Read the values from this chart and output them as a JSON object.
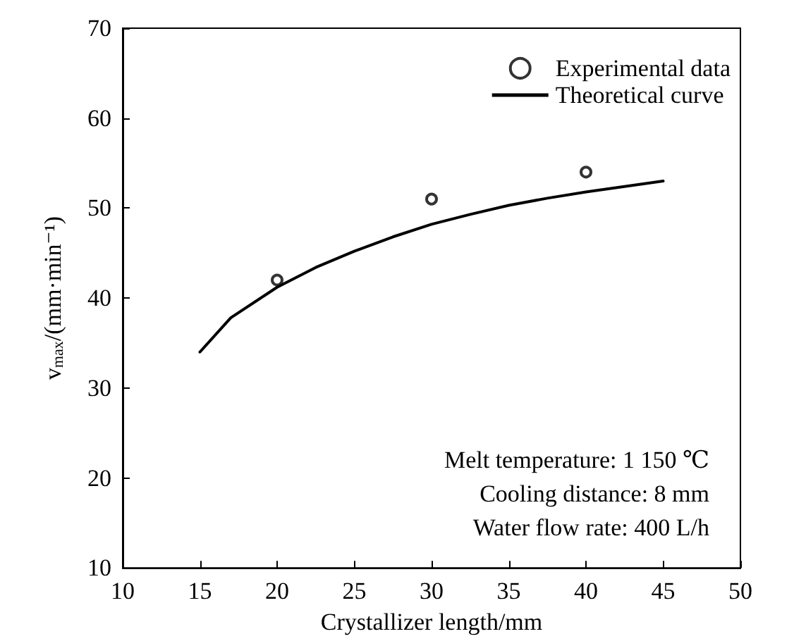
{
  "chart_data": {
    "type": "scatter",
    "xlabel": "Crystallizer length/mm",
    "ylabel": "v$_{max}$/(mm·min⁻¹)",
    "xlim": [
      10,
      50
    ],
    "xticks": [
      10,
      15,
      20,
      25,
      30,
      35,
      40,
      45,
      50
    ],
    "ylim": [
      10,
      70
    ],
    "yticks": [
      10,
      20,
      30,
      40,
      50,
      60,
      70
    ],
    "grid": false,
    "legend": "top right",
    "series": [
      {
        "name": "Experimental data",
        "marker": "circle",
        "color": "#000000",
        "x": [
          20,
          30,
          40
        ],
        "values": [
          42,
          51,
          54
        ]
      },
      {
        "name": "Theoretical curve",
        "type": "line",
        "marker": "none",
        "line_style": "solid",
        "color": "#000000",
        "x": [
          15,
          17,
          20,
          22.5,
          25,
          27.5,
          30,
          32.5,
          35,
          37.5,
          40,
          42.5,
          45
        ],
        "values": [
          34,
          37.8,
          41.2,
          43.4,
          45.2,
          46.8,
          48.2,
          49.3,
          50.3,
          51.1,
          51.8,
          52.4,
          53
        ]
      }
    ],
    "annotations": [
      "Melt temperature: 1 150 ℃",
      "Cooling distance: 8 mm",
      "Water flow rate: 400 L/h"
    ]
  }
}
